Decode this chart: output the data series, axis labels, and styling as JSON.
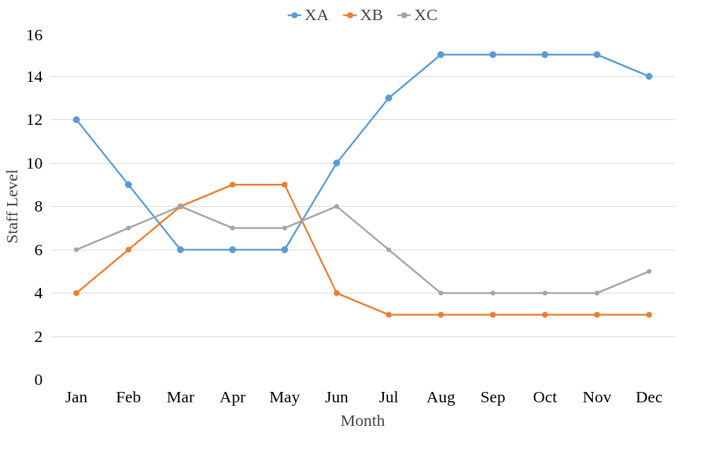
{
  "chart_data": {
    "type": "line",
    "xlabel": "Month",
    "ylabel": "Staff Level",
    "categories": [
      "Jan",
      "Feb",
      "Mar",
      "Apr",
      "May",
      "Jun",
      "Jul",
      "Aug",
      "Sep",
      "Oct",
      "Nov",
      "Dec"
    ],
    "series": [
      {
        "name": "XA",
        "color": "#5b9bd5",
        "values": [
          12,
          9,
          6,
          6,
          6,
          10,
          13,
          15,
          15,
          15,
          15,
          14
        ]
      },
      {
        "name": "XB",
        "color": "#ed7d31",
        "values": [
          4,
          6,
          8,
          9,
          9,
          4,
          3,
          3,
          3,
          3,
          3,
          3
        ]
      },
      {
        "name": "XC",
        "color": "#a5a5a5",
        "values": [
          6,
          7,
          8,
          7,
          7,
          8,
          6,
          4,
          4,
          4,
          4,
          5
        ]
      }
    ],
    "ylim": [
      0,
      16
    ],
    "yticks": [
      0,
      2,
      4,
      6,
      8,
      10,
      12,
      14,
      16
    ],
    "grid": "y",
    "legend": "top",
    "marker": "circle",
    "line_style": "solid"
  }
}
